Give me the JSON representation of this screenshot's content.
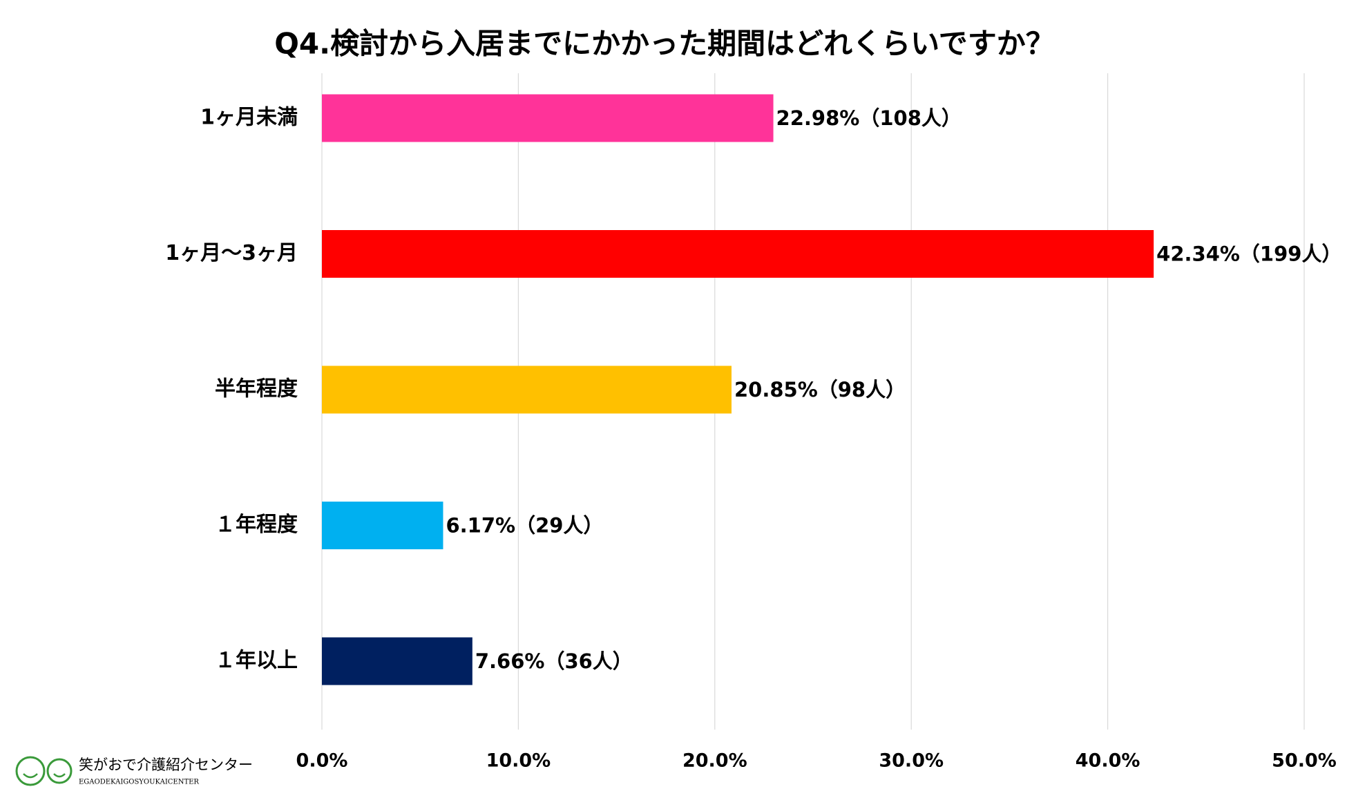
{
  "chart_data": {
    "type": "barh",
    "title": "Q4.検討から入居までにかかった期間はどれくらいですか？",
    "categories": [
      "1ヶ月未満",
      "1ヶ月〜3ヶ月",
      "半年程度",
      "１年程度",
      "１年以上"
    ],
    "values": [
      22.98,
      42.34,
      20.85,
      6.17,
      7.66
    ],
    "value_labels": [
      "22.98%（108人）",
      "42.34%（199人）",
      "20.85%（98人）",
      "6.17%（29人）",
      "7.66%（36人）"
    ],
    "colors": [
      "#ff3399",
      "#ff0000",
      "#ffc000",
      "#00b0f0",
      "#002060"
    ],
    "xlim": [
      0,
      50
    ],
    "xticks": [
      {
        "value": 0,
        "label": "0.0%"
      },
      {
        "value": 10,
        "label": "10.0%"
      },
      {
        "value": 20,
        "label": "20.0%"
      },
      {
        "value": 30,
        "label": "30.0%"
      },
      {
        "value": 40,
        "label": "40.0%"
      },
      {
        "value": 50,
        "label": "50.0%"
      }
    ],
    "grid": true
  },
  "logo": {
    "name": "笑がおで介護紹介センター",
    "sub": "EGAODEKAIGOSYOUKAICENTER"
  }
}
